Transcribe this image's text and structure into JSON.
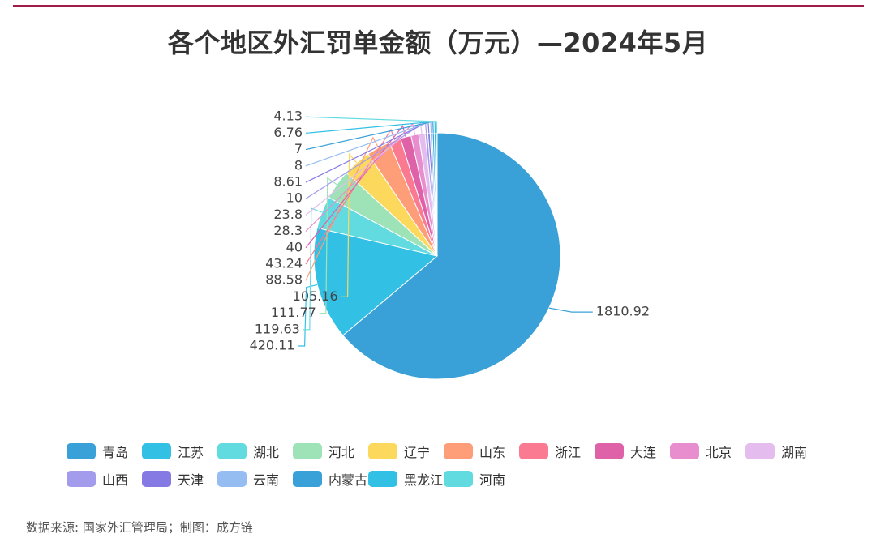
{
  "title": "各个地区外汇罚单金额（万元）—2024年5月",
  "source": "数据来源: 国家外汇管理局；制图：成方链",
  "colors": {
    "accent_rule": "#a01b48",
    "palette": [
      "#3aa0d8",
      "#33c0e5",
      "#62dbe0",
      "#9ee3b8",
      "#fcd85d",
      "#fe9e78",
      "#fa7b91",
      "#df61a8",
      "#e88ecf",
      "#e4bced",
      "#a39ced",
      "#8579e4",
      "#95bdf2",
      "#3aa0d8",
      "#33c0e5",
      "#62dbe0"
    ]
  },
  "chart_data": {
    "type": "pie",
    "title": "各个地区外汇罚单金额（万元）—2024年5月",
    "unit": "万元",
    "categories": [
      "青岛",
      "江苏",
      "湖北",
      "河北",
      "辽宁",
      "山东",
      "浙江",
      "大连",
      "北京",
      "湖南",
      "山西",
      "天津",
      "云南",
      "内蒙古",
      "黑龙江",
      "河南"
    ],
    "values": [
      1810.92,
      420.11,
      119.63,
      111.77,
      105.16,
      88.58,
      43.24,
      40,
      28.3,
      23.8,
      10,
      8.61,
      8,
      7,
      6.76,
      4.13
    ],
    "labels": [
      "1810.92",
      "420.11",
      "119.63",
      "111.77",
      "105.16",
      "88.58",
      "43.24",
      "40",
      "28.3",
      "23.8",
      "10",
      "8.61",
      "8",
      "7",
      "6.76",
      "4.13"
    ],
    "legend_position": "bottom"
  }
}
